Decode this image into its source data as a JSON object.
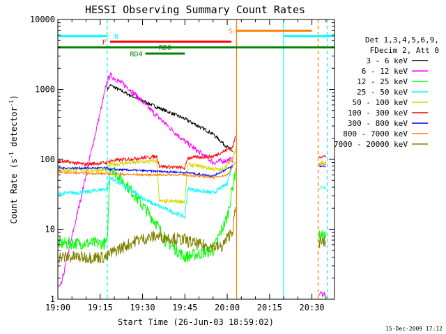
{
  "chart_data": {
    "type": "line",
    "title": "HESSI Observing Summary Count Rates",
    "xlabel": "Start Time (26-Jun-03 18:59:02)",
    "ylabel_main": "Count Rate (s",
    "ylabel_sup1": "-1",
    "ylabel_mid": " detector",
    "ylabel_sup2": "-1",
    "ylabel_end": ")",
    "yscale": "log",
    "xlim": [
      0,
      98
    ],
    "ylim": [
      1,
      10000
    ],
    "xticks": [
      0,
      15,
      30,
      45,
      60,
      75,
      90
    ],
    "xtick_labels": [
      "19:00",
      "19:15",
      "19:30",
      "19:45",
      "20:00",
      "20:15",
      "20:30"
    ],
    "yticks": [
      1,
      10,
      100,
      1000,
      10000
    ],
    "ytick_labels": [
      "1",
      "10",
      "100",
      "1000",
      "10000"
    ],
    "legend_header": [
      "Det 1,3,4,5,6,9,",
      "FDecim 2, Att 0"
    ],
    "legend_placement": "right",
    "series": [
      {
        "name": "3 - 6 keV",
        "color": "#000000",
        "points": [
          [
            0,
            null
          ],
          [
            17.5,
            1000
          ],
          [
            18.5,
            1150
          ],
          [
            25,
            850
          ],
          [
            35,
            560
          ],
          [
            45,
            380
          ],
          [
            55,
            230
          ],
          [
            60,
            150
          ],
          [
            62,
            130
          ]
        ]
      },
      {
        "name": "6 - 12 keV",
        "color": "#ff00ff",
        "points": [
          [
            0,
            1.5
          ],
          [
            1,
            1.5
          ],
          [
            17.5,
            1300
          ],
          [
            18.5,
            1600
          ],
          [
            25,
            1050
          ],
          [
            35,
            420
          ],
          [
            45,
            180
          ],
          [
            55,
            90
          ],
          [
            62,
            100
          ]
        ]
      },
      {
        "name": "12 - 25 keV",
        "color": "#00ff00",
        "points": [
          [
            0,
            6.3
          ],
          [
            17.5,
            6.3
          ],
          [
            18.5,
            80
          ],
          [
            25,
            40
          ],
          [
            35,
            12
          ],
          [
            38,
            7
          ],
          [
            45,
            4
          ],
          [
            55,
            5
          ],
          [
            60,
            15
          ],
          [
            63,
            70
          ]
        ]
      },
      {
        "name": "25 - 50 keV",
        "color": "#00ffff",
        "points": [
          [
            0,
            32
          ],
          [
            10,
            34
          ],
          [
            17.5,
            38
          ],
          [
            18.5,
            55
          ],
          [
            25,
            38
          ],
          [
            32,
            25
          ],
          [
            35,
            22
          ],
          [
            45,
            15
          ],
          [
            46,
            38
          ],
          [
            55,
            33
          ],
          [
            60,
            45
          ],
          [
            62,
            90
          ]
        ]
      },
      {
        "name": "50 - 100 keV",
        "color": "#d4d400",
        "points": [
          [
            0,
            70
          ],
          [
            17.5,
            70
          ],
          [
            18.5,
            85
          ],
          [
            35,
            95
          ],
          [
            36,
            25
          ],
          [
            45,
            25
          ],
          [
            46,
            85
          ],
          [
            58,
            70
          ],
          [
            62,
            100
          ],
          [
            63,
            150
          ]
        ]
      },
      {
        "name": "100 - 300 keV",
        "color": "#ff0000",
        "points": [
          [
            0,
            95
          ],
          [
            10,
            85
          ],
          [
            17.5,
            90
          ],
          [
            18.5,
            95
          ],
          [
            35,
            110
          ],
          [
            36,
            80
          ],
          [
            45,
            75
          ],
          [
            46,
            105
          ],
          [
            55,
            110
          ],
          [
            62,
            150
          ],
          [
            63,
            220
          ]
        ]
      },
      {
        "name": "300 - 800 keV",
        "color": "#0000ff",
        "points": [
          [
            0,
            75
          ],
          [
            17.5,
            75
          ],
          [
            18.5,
            72
          ],
          [
            45,
            65
          ],
          [
            55,
            58
          ],
          [
            62,
            80
          ]
        ]
      },
      {
        "name": "800 - 7000 keV",
        "color": "#ff8000",
        "points": [
          [
            0,
            65
          ],
          [
            17.5,
            62
          ],
          [
            30,
            60
          ],
          [
            45,
            60
          ],
          [
            55,
            55
          ],
          [
            60,
            60
          ],
          [
            63,
            90
          ]
        ]
      },
      {
        "name": "7000 - 20000 keV",
        "color": "#808000",
        "points": [
          [
            0,
            4
          ],
          [
            17.5,
            4
          ],
          [
            18.5,
            4.5
          ],
          [
            28,
            7
          ],
          [
            35,
            8
          ],
          [
            45,
            7
          ],
          [
            50,
            6
          ],
          [
            58,
            5.5
          ],
          [
            62,
            10
          ],
          [
            63,
            20
          ]
        ]
      }
    ],
    "late_segment": {
      "x_start": 92.5,
      "x_end": 95,
      "values": {
        "100 - 300 keV": 110,
        "50 - 100 keV": 90,
        "25 - 50 keV": 40,
        "800 - 7000 keV": 85,
        "300 - 800 keV": 80,
        "12 - 25 keV": 8,
        "7000 - 20000 keV": 6.5,
        "6 - 12 keV": 1.2
      }
    },
    "annotations": {
      "N": {
        "label": "N",
        "color": "#00ffff",
        "y": 5800,
        "segments": [
          [
            0,
            17.5
          ],
          [
            80,
            98
          ]
        ]
      },
      "F": {
        "label": "F",
        "color": "#ff0000",
        "y": 4800,
        "segments": [
          [
            18.5,
            61.5
          ]
        ]
      },
      "S": {
        "label": "S",
        "color": "#ff8000",
        "y": 6900,
        "segments": [
          [
            63,
            90
          ]
        ]
      },
      "RD0": {
        "label": "RD0",
        "color": "#008000",
        "y": 4000,
        "segments": [
          [
            0,
            98
          ]
        ]
      },
      "RD4": {
        "label": "RD4",
        "color": "#008000",
        "y": 3250,
        "segments": [
          [
            31,
            45
          ]
        ]
      }
    },
    "vlines": [
      {
        "x": 17.5,
        "color": "#00ffff",
        "dashed": true
      },
      {
        "x": 63.3,
        "color": "#ff8000",
        "dashed": false
      },
      {
        "x": 80,
        "color": "#00ffff",
        "dashed": false
      },
      {
        "x": 92.2,
        "color": "#ff8000",
        "dashed": true
      },
      {
        "x": 95.5,
        "color": "#00ffff",
        "dashed": true
      }
    ],
    "timestamp": "15-Dec-2009 17:12"
  }
}
